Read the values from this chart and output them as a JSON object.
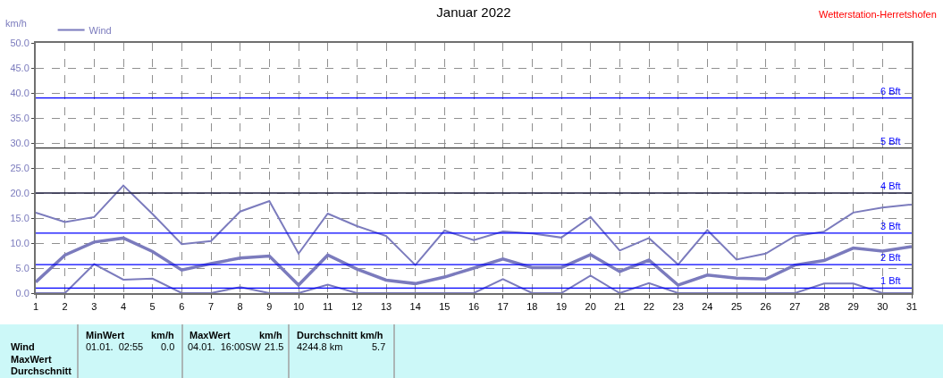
{
  "chart_data": {
    "type": "line",
    "title": "Januar 2022",
    "ylabel": "km/h",
    "x": [
      1,
      2,
      3,
      4,
      5,
      6,
      7,
      8,
      9,
      10,
      11,
      12,
      13,
      14,
      15,
      16,
      17,
      18,
      19,
      20,
      21,
      22,
      23,
      24,
      25,
      26,
      27,
      28,
      29,
      30,
      31
    ],
    "series": [
      {
        "name": "Wind",
        "color": "#7b7bbd",
        "values": [
          16.1,
          14.2,
          15.2,
          21.5,
          15.8,
          9.8,
          10.4,
          16.3,
          18.4,
          7.9,
          15.9,
          13.4,
          11.4,
          5.6,
          12.5,
          10.6,
          12.3,
          11.9,
          11.1,
          15.2,
          8.5,
          11.0,
          5.7,
          12.6,
          6.7,
          7.9,
          11.4,
          12.3,
          16.1,
          17.1,
          17.7
        ]
      },
      {
        "color": "#7b7bbd",
        "values": [
          2.2,
          7.6,
          10.2,
          11.0,
          8.3,
          4.6,
          5.9,
          7.0,
          7.4,
          1.6,
          7.6,
          4.8,
          2.6,
          1.9,
          3.2,
          5.0,
          6.8,
          5.1,
          5.1,
          7.7,
          4.3,
          6.6,
          1.6,
          3.6,
          3.0,
          2.8,
          5.6,
          6.5,
          9.0,
          8.4,
          9.3
        ]
      },
      {
        "color": "#7b7bbd",
        "values": [
          0,
          0,
          5.8,
          2.7,
          2.9,
          0,
          0,
          1.2,
          0,
          0,
          1.7,
          0,
          0,
          0,
          0,
          0,
          2.8,
          0,
          0,
          3.5,
          0,
          2.0,
          0,
          0,
          0,
          0,
          0,
          1.9,
          1.9,
          0,
          0
        ]
      }
    ],
    "xlim": [
      1,
      31
    ],
    "xticks": [
      1,
      2,
      3,
      4,
      5,
      6,
      7,
      8,
      9,
      10,
      11,
      12,
      13,
      14,
      15,
      16,
      17,
      18,
      19,
      20,
      21,
      22,
      23,
      24,
      25,
      26,
      27,
      28,
      29,
      30,
      31
    ],
    "ylim": [
      0,
      50
    ],
    "yticks": [
      {
        "value": 0,
        "label": "0.0"
      },
      {
        "value": 5,
        "label": "5.0"
      },
      {
        "value": 10,
        "label": "10.0"
      },
      {
        "value": 15,
        "label": "15.0"
      },
      {
        "value": 20,
        "label": "20.0"
      },
      {
        "value": 25,
        "label": "25.0"
      },
      {
        "value": 30,
        "label": "30.0"
      },
      {
        "value": 35,
        "label": "35.0"
      },
      {
        "value": 40,
        "label": "40.0"
      },
      {
        "value": 45,
        "label": "45.0"
      },
      {
        "value": 50,
        "label": "50.0"
      }
    ],
    "ref_lines": [
      {
        "axis": "y",
        "value": 1,
        "label": "1 Bft",
        "color": "#0000ff"
      },
      {
        "axis": "y",
        "value": 5.7,
        "label": "2 Bft",
        "color": "#0000ff"
      },
      {
        "axis": "y",
        "value": 12,
        "label": "3 Bft",
        "color": "#0000ff"
      },
      {
        "axis": "y",
        "value": 20,
        "label": "4 Bft",
        "color": "#202040"
      },
      {
        "axis": "y",
        "value": 29,
        "label": "5 Bft",
        "color": "#303030"
      },
      {
        "axis": "y",
        "value": 39,
        "label": "6 Bft",
        "color": "#0000ff"
      }
    ],
    "grid": true,
    "legend": "top left",
    "marker": "none",
    "line_style": "solid",
    "annotations": [
      "Wetterstation-Herretshofen",
      "Wind",
      "MaxWert",
      "Durchschnitt",
      "MinWert",
      "km/h",
      "01.01.  02:55",
      "0.0",
      "MaxWert",
      "km/h",
      "04.01.  16:00SW",
      "21.5",
      "Durchschnitt km/h",
      "4244.8 km",
      "5.7"
    ]
  }
}
